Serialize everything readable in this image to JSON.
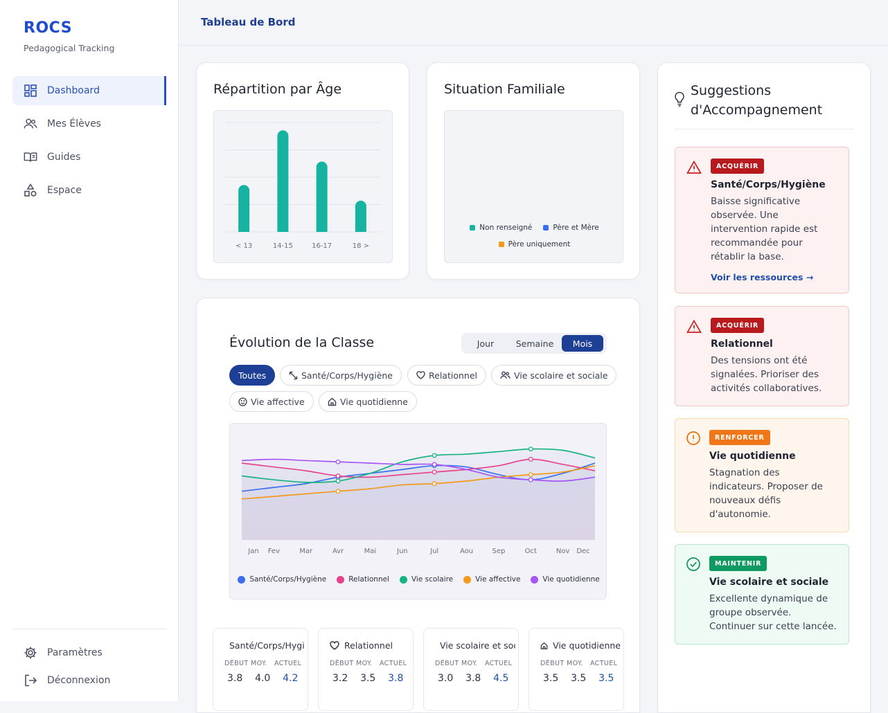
{
  "app": {
    "name": "ROCS",
    "subtitle": "Pedagogical Tracking"
  },
  "sidebar": {
    "items": [
      {
        "label": "Dashboard",
        "icon": "dashboard-icon",
        "active": true
      },
      {
        "label": "Mes Élèves",
        "icon": "users-icon"
      },
      {
        "label": "Guides",
        "icon": "book-icon"
      },
      {
        "label": "Espace",
        "icon": "shapes-icon"
      }
    ],
    "bottom": [
      {
        "label": "Paramètres",
        "icon": "gear-icon"
      },
      {
        "label": "Déconnexion",
        "icon": "logout-icon"
      }
    ]
  },
  "header": {
    "title": "Tableau de Bord"
  },
  "age_card": {
    "title": "Répartition par Âge"
  },
  "family_card": {
    "title": "Situation Familiale",
    "legend": [
      {
        "label": "Non renseigné",
        "color": "#16b4a0"
      },
      {
        "label": "Père et Mère",
        "color": "#3b6ef0"
      },
      {
        "label": "Père uniquement",
        "color": "#f39a1c"
      }
    ]
  },
  "evolution": {
    "title": "Évolution de la Classe",
    "periods": [
      "Jour",
      "Semaine",
      "Mois"
    ],
    "active_period": "Mois",
    "filters": [
      "Toutes",
      "Santé/Corps/Hygiène",
      "Relationnel",
      "Vie scolaire et sociale",
      "Vie affective",
      "Vie quotidienne"
    ],
    "active_filter": "Toutes"
  },
  "chart_data": [
    {
      "type": "bar",
      "categories": [
        "< 13",
        "14-15",
        "16-17",
        "18 >"
      ],
      "values": [
        6,
        13,
        9,
        4
      ],
      "ylim": [
        0,
        14
      ],
      "color": "#16b4a0",
      "grid": true
    },
    {
      "type": "line",
      "x": [
        "Jan",
        "Fev",
        "Mar",
        "Avr",
        "Mai",
        "Jun",
        "Jul",
        "Aou",
        "Sep",
        "Oct",
        "Nov",
        "Dec"
      ],
      "ylim": [
        1,
        5
      ],
      "grid": false,
      "legend_position": "bottom",
      "series": [
        {
          "name": "Santé/Corps/Hygiène",
          "color": "#3b6ef0",
          "values": [
            2.9,
            3.05,
            3.2,
            3.45,
            3.6,
            3.75,
            3.9,
            3.85,
            3.55,
            3.35,
            3.6,
            4.0
          ]
        },
        {
          "name": "Relationnel",
          "color": "#e8418f",
          "values": [
            4.0,
            3.85,
            3.7,
            3.5,
            3.45,
            3.55,
            3.65,
            3.75,
            3.9,
            4.15,
            3.95,
            3.7
          ]
        },
        {
          "name": "Vie scolaire",
          "color": "#16b383",
          "values": [
            3.5,
            3.35,
            3.25,
            3.3,
            3.6,
            4.05,
            4.3,
            4.35,
            4.45,
            4.55,
            4.5,
            4.2
          ]
        },
        {
          "name": "Vie affective",
          "color": "#f39a1c",
          "values": [
            2.6,
            2.7,
            2.8,
            2.9,
            3.0,
            3.15,
            3.2,
            3.3,
            3.45,
            3.55,
            3.65,
            3.9
          ]
        },
        {
          "name": "Vie quotidienne",
          "color": "#a855f7",
          "values": [
            4.1,
            4.15,
            4.1,
            4.05,
            4.0,
            3.95,
            3.95,
            3.75,
            3.45,
            3.35,
            3.3,
            3.45
          ]
        }
      ]
    }
  ],
  "mini_cards": {
    "head_debut": "DÉBUT",
    "head_moy": "MOY.",
    "head_actuel": "ACTUEL",
    "items": [
      {
        "title": "Santé/Corps/Hygiène",
        "icon": "resize-icon",
        "debut": "3.8",
        "moy": "4.0",
        "actuel": "4.2"
      },
      {
        "title": "Relationnel",
        "icon": "heart-icon",
        "debut": "3.2",
        "moy": "3.5",
        "actuel": "3.8"
      },
      {
        "title": "Vie scolaire et sociale",
        "icon": "users-icon",
        "debut": "3.0",
        "moy": "3.8",
        "actuel": "4.5"
      },
      {
        "title": "Vie quotidienne",
        "icon": "home-icon",
        "debut": "3.5",
        "moy": "3.5",
        "actuel": "3.5"
      }
    ]
  },
  "suggestions": {
    "title_line1": "Suggestions",
    "title_line2": "d'Accompagnement",
    "items": [
      {
        "badge": "ACQUÉRIR",
        "title": "Santé/Corps/Hygiène",
        "lines": [
          "Baisse significative",
          "observée. Une",
          "intervention rapide est",
          "recommandée pour",
          "rétablir la base."
        ],
        "link": "Voir les ressources →",
        "tone": "red",
        "icon": "warning-icon"
      },
      {
        "badge": "ACQUÉRIR",
        "title": "Relationnel",
        "lines": [
          "Des tensions ont été",
          "signalées. Prioriser des",
          "activités collaboratives."
        ],
        "tone": "red",
        "icon": "warning-icon"
      },
      {
        "badge": "RENFORCER",
        "title": "Vie quotidienne",
        "lines": [
          "Stagnation des",
          "indicateurs. Proposer de",
          "nouveaux défis",
          "d'autonomie."
        ],
        "tone": "orange",
        "icon": "alert-circle-icon"
      },
      {
        "badge": "MAINTENIR",
        "title": "Vie scolaire et sociale",
        "lines": [
          "Excellente dynamique de",
          "groupe observée.",
          "Continuer sur cette lancée."
        ],
        "tone": "green",
        "icon": "check-circle-icon"
      }
    ]
  }
}
